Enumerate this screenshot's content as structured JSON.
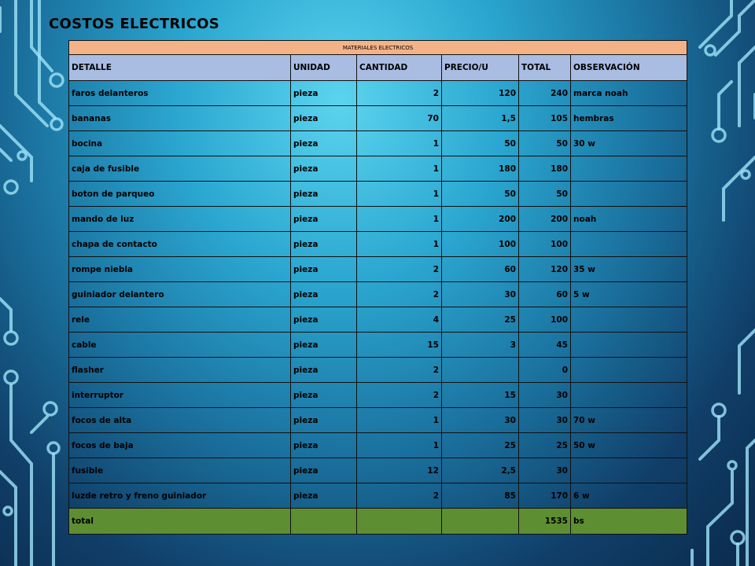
{
  "title": "COSTOS ELECTRICOS",
  "table": {
    "caption": "MATERIALES  ELECTRICOS",
    "headers": [
      "DETALLE",
      "UNIDAD",
      "CANTIDAD",
      "PRECIO/U",
      "TOTAL",
      "OBSERVACIÓN"
    ],
    "rows": [
      [
        "faros delanteros",
        "pieza",
        "2",
        "120",
        "240",
        "marca noah"
      ],
      [
        "bananas",
        "pieza",
        "70",
        "1,5",
        "105",
        "hembras"
      ],
      [
        "bocina",
        "pieza",
        "1",
        "50",
        "50",
        "30 w"
      ],
      [
        "caja de fusible",
        "pieza",
        "1",
        "180",
        "180",
        ""
      ],
      [
        "boton de parqueo",
        "pieza",
        "1",
        "50",
        "50",
        ""
      ],
      [
        "mando de luz",
        "pieza",
        "1",
        "200",
        "200",
        "noah"
      ],
      [
        "chapa de contacto",
        "pieza",
        "1",
        "100",
        "100",
        ""
      ],
      [
        "rompe niebla",
        "pieza",
        "2",
        "60",
        "120",
        "35 w"
      ],
      [
        "guiniador  delantero",
        "pieza",
        "2",
        "30",
        "60",
        "5 w"
      ],
      [
        "rele",
        "pieza",
        "4",
        "25",
        "100",
        ""
      ],
      [
        "cable",
        "pieza",
        "15",
        "3",
        "45",
        ""
      ],
      [
        "flasher",
        "pieza",
        "2",
        "",
        "0",
        ""
      ],
      [
        "interruptor",
        "pieza",
        "2",
        "15",
        "30",
        ""
      ],
      [
        "focos de alta",
        "pieza",
        "1",
        "30",
        "30",
        "70 w"
      ],
      [
        "focos de baja",
        "pieza",
        "1",
        "25",
        "25",
        "50 w"
      ],
      [
        "fusible",
        "pieza",
        "12",
        "2,5",
        "30",
        ""
      ],
      [
        "luzde retro y freno guiniador",
        "pieza",
        "2",
        "85",
        "170",
        "6 w"
      ]
    ],
    "total_row": [
      "total",
      "",
      "",
      "",
      "1535",
      "bs"
    ]
  },
  "colors": {
    "caption_bg": "#f3b387",
    "header_bg": "#a9bde3",
    "total_bg": "#5e8e32",
    "circuit_line": "#9fe3f7"
  }
}
